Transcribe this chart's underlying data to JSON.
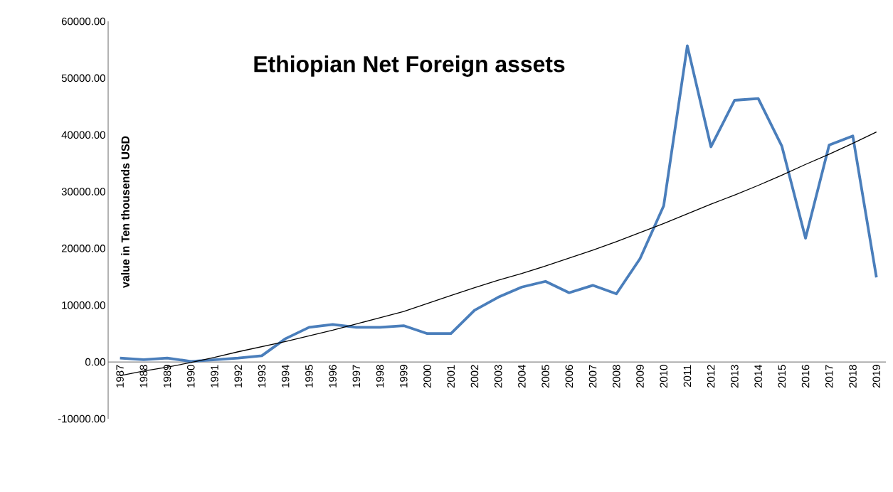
{
  "chart_data": {
    "type": "line",
    "title": "Ethiopian Net Foreign assets",
    "ylabel": "value in Ten thousends USD",
    "categories": [
      "1987",
      "1988",
      "1989",
      "1990",
      "1991",
      "1992",
      "1993",
      "1994",
      "1995",
      "1996",
      "1997",
      "1998",
      "1999",
      "2000",
      "2001",
      "2002",
      "2003",
      "2004",
      "2005",
      "2006",
      "2007",
      "2008",
      "2009",
      "2010",
      "2011",
      "2012",
      "2013",
      "2014",
      "2015",
      "2016",
      "2017",
      "2018",
      "2019"
    ],
    "series": [
      {
        "color": "#4a7ebb",
        "values": [
          700,
          400,
          700,
          100,
          400,
          700,
          1100,
          4100,
          6100,
          6600,
          6100,
          6100,
          6400,
          5000,
          5000,
          9100,
          11400,
          13200,
          14200,
          12200,
          13500,
          12000,
          18200,
          27500,
          55700,
          37900,
          46100,
          46400,
          38000,
          21800,
          38200,
          39800,
          14900
        ]
      },
      {
        "color": "#000000",
        "values": [
          -2400,
          -1600,
          -900,
          -100,
          800,
          1800,
          2700,
          3600,
          4600,
          5600,
          6700,
          7800,
          8900,
          10300,
          11700,
          13100,
          14400,
          15600,
          16900,
          18300,
          19700,
          21200,
          22800,
          24400,
          26100,
          27800,
          29400,
          31100,
          32900,
          34800,
          36600,
          38500,
          40500
        ]
      }
    ],
    "ylim": [
      -10000,
      60000
    ],
    "yticks": [
      {
        "value": -10000,
        "label": "-10000.00"
      },
      {
        "value": 0,
        "label": "0.00"
      },
      {
        "value": 10000,
        "label": "10000.00"
      },
      {
        "value": 20000,
        "label": "20000.00"
      },
      {
        "value": 30000,
        "label": "30000.00"
      },
      {
        "value": 40000,
        "label": "40000.00"
      },
      {
        "value": 50000,
        "label": "50000.00"
      },
      {
        "value": 60000,
        "label": "60000.00"
      }
    ]
  }
}
